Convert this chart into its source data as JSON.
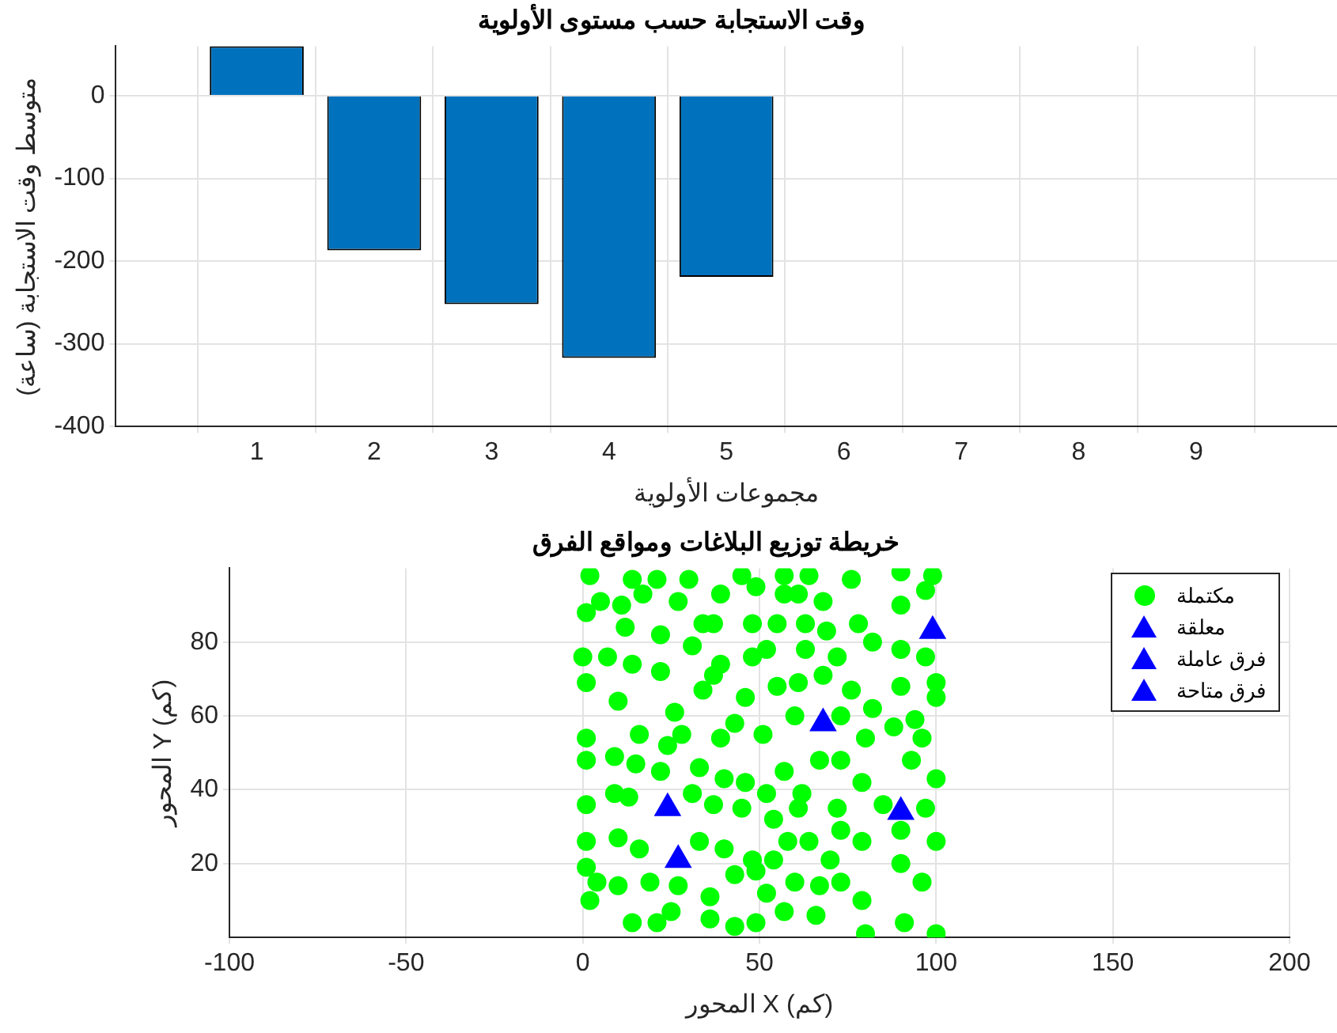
{
  "chart_data": [
    {
      "type": "bar",
      "title": "وقت الاستجابة حسب مستوى الأولوية",
      "xlabel": "مجموعات الأولوية",
      "ylabel": "متوسط وقت الاستجابة (ساعة)",
      "x": [
        1,
        2,
        3,
        4,
        5,
        6,
        7,
        8,
        9
      ],
      "values": [
        60,
        -187,
        -252,
        -317,
        -219,
        0,
        0,
        0,
        0
      ],
      "color": "#0072bd",
      "xlim": [
        -0.2,
        10.2
      ],
      "xticks": [
        1,
        2,
        3,
        4,
        5,
        6,
        7,
        8,
        9
      ],
      "ylim": [
        -400,
        60
      ],
      "yticks": [
        -400,
        -300,
        -200,
        -100,
        0
      ],
      "grid": true,
      "legend": false
    },
    {
      "type": "scatter",
      "title": "خريطة توزيع البلاغات ومواقع الفرق",
      "xlabel": "المحور X (كم)",
      "ylabel": "المحور Y (كم)",
      "xlim": [
        -100,
        200
      ],
      "xticks": [
        -100,
        -50,
        0,
        50,
        100,
        150,
        200
      ],
      "ylim": [
        0,
        100
      ],
      "yticks": [
        20,
        40,
        60,
        80
      ],
      "grid": true,
      "legend": "top right",
      "series": [
        {
          "name": "مكتملة",
          "color": "#00ff00",
          "marker": "circle",
          "x": [
            2,
            14,
            21,
            30,
            1,
            5,
            11,
            17,
            27,
            39,
            45,
            57,
            64,
            76,
            90,
            99,
            97,
            68,
            57,
            49,
            61,
            90,
            78,
            69,
            63,
            55,
            48,
            37,
            34,
            22,
            12,
            0,
            7,
            14,
            22,
            31,
            39,
            48,
            52,
            63,
            72,
            82,
            90,
            97,
            1,
            10,
            26,
            34,
            37,
            46,
            55,
            61,
            68,
            76,
            82,
            90,
            100,
            100,
            94,
            1,
            9,
            16,
            24,
            28,
            39,
            43,
            51,
            60,
            73,
            80,
            88,
            96,
            1,
            15,
            22,
            33,
            40,
            46,
            52,
            57,
            62,
            67,
            73,
            79,
            85,
            93,
            100,
            1,
            9,
            13,
            31,
            37,
            45,
            54,
            61,
            72,
            73,
            97,
            1,
            10,
            16,
            33,
            40,
            48,
            54,
            58,
            64,
            70,
            79,
            90,
            100,
            1,
            4,
            10,
            19,
            27,
            36,
            43,
            49,
            52,
            60,
            67,
            73,
            79,
            90,
            96,
            2,
            14,
            21,
            36,
            43,
            49,
            57,
            66,
            80,
            91,
            100,
            25
          ],
          "values": [
            98,
            97,
            97,
            97,
            88,
            91,
            90,
            93,
            91,
            93,
            98,
            98,
            98,
            97,
            99,
            98,
            94,
            91,
            93,
            95,
            93,
            90,
            85,
            83,
            85,
            85,
            85,
            85,
            85,
            82,
            84,
            76,
            76,
            74,
            72,
            79,
            74,
            76,
            78,
            78,
            76,
            80,
            78,
            76,
            69,
            64,
            61,
            67,
            71,
            65,
            68,
            69,
            71,
            67,
            62,
            68,
            69,
            65,
            59,
            54,
            49,
            55,
            52,
            55,
            54,
            58,
            55,
            60,
            60,
            54,
            57,
            54,
            48,
            47,
            45,
            46,
            43,
            42,
            39,
            45,
            39,
            48,
            48,
            42,
            36,
            48,
            43,
            36,
            39,
            38,
            39,
            36,
            35,
            32,
            35,
            35,
            29,
            35,
            26,
            27,
            24,
            26,
            24,
            21,
            21,
            26,
            26,
            21,
            26,
            29,
            26,
            19,
            15,
            14,
            15,
            14,
            11,
            17,
            18,
            12,
            15,
            14,
            15,
            10,
            20,
            15,
            10,
            4,
            4,
            5,
            3,
            4,
            7,
            6,
            1,
            4,
            1,
            7
          ]
        },
        {
          "name": "معلقة",
          "color": "#0000ff",
          "marker": "triangle"
        },
        {
          "name": "فرق عاملة",
          "color": "#0000ff",
          "marker": "triangle"
        },
        {
          "name": "فرق متاحة",
          "color": "#0000ff",
          "marker": "triangle",
          "x": [
            24,
            27,
            68,
            99,
            90
          ],
          "values": [
            35,
            21,
            58,
            83,
            34
          ]
        }
      ]
    }
  ]
}
